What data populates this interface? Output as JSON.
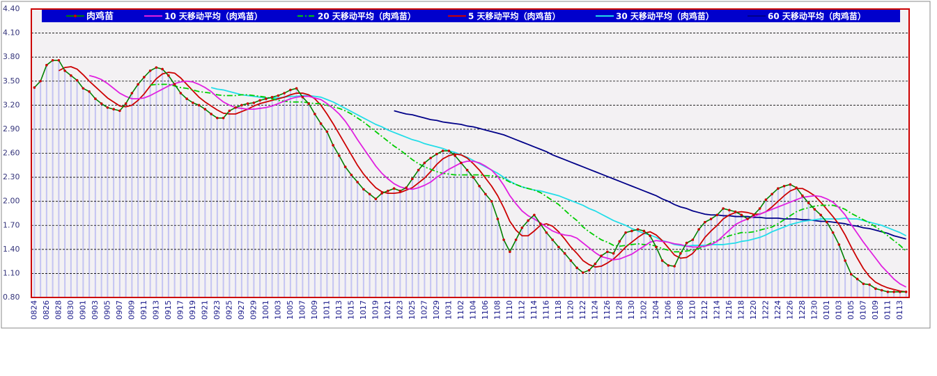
{
  "chart_data": {
    "type": "line",
    "categories": [
      "0824",
      null,
      "0826",
      null,
      "0828",
      null,
      "0830",
      null,
      "0901",
      null,
      "0903",
      null,
      "0905",
      null,
      "0907",
      null,
      "0909",
      null,
      "0911",
      null,
      "0913",
      null,
      "0915",
      null,
      "0917",
      null,
      "0919",
      null,
      "0921",
      null,
      "0923",
      null,
      "0925",
      null,
      "0927",
      null,
      "0929",
      null,
      "1001",
      null,
      "1003",
      null,
      "1005",
      null,
      "1007",
      null,
      "1009",
      null,
      "1011",
      null,
      "1013",
      null,
      "1015",
      null,
      "1017",
      null,
      "1019",
      null,
      "1021",
      null,
      "1023",
      null,
      "1025",
      null,
      "1027",
      null,
      "1029",
      null,
      "1031",
      null,
      "1102",
      null,
      "1104",
      null,
      "1106",
      null,
      "1108",
      null,
      "1110",
      null,
      "1112",
      null,
      "1114",
      null,
      "1116",
      null,
      "1118",
      null,
      "1120",
      null,
      "1122",
      null,
      "1124",
      null,
      "1126",
      null,
      "1128",
      null,
      "1130",
      null,
      "1202",
      null,
      "1204",
      null,
      "1206",
      null,
      "1208",
      null,
      "1210",
      null,
      "1212",
      null,
      "1214",
      null,
      "1216",
      null,
      "1218",
      null,
      "1220",
      null,
      "1222",
      null,
      "1224",
      null,
      "1226",
      null,
      "1228",
      null,
      "1230",
      null,
      "0101",
      null,
      "0103",
      null,
      "0105",
      null,
      "0107",
      null,
      "0109",
      null,
      "0111",
      null,
      "0113",
      null
    ],
    "series": [
      {
        "name": "肉鸡苗",
        "color": "#008000",
        "marker_color": "#cc0000",
        "values": [
          3.42,
          3.5,
          3.7,
          3.76,
          3.76,
          3.63,
          3.57,
          3.51,
          3.41,
          3.37,
          3.28,
          3.22,
          3.17,
          3.15,
          3.13,
          3.22,
          3.35,
          3.46,
          3.55,
          3.63,
          3.67,
          3.65,
          3.57,
          3.46,
          3.35,
          3.28,
          3.23,
          3.2,
          3.15,
          3.09,
          3.04,
          3.04,
          3.13,
          3.17,
          3.2,
          3.22,
          3.23,
          3.26,
          3.28,
          3.3,
          3.32,
          3.35,
          3.39,
          3.41,
          3.3,
          3.22,
          3.09,
          2.97,
          2.87,
          2.7,
          2.57,
          2.43,
          2.33,
          2.24,
          2.15,
          2.09,
          2.03,
          2.1,
          2.13,
          2.16,
          2.13,
          2.17,
          2.28,
          2.39,
          2.48,
          2.54,
          2.59,
          2.63,
          2.63,
          2.57,
          2.48,
          2.39,
          2.3,
          2.19,
          2.09,
          2.0,
          1.78,
          1.52,
          1.37,
          1.52,
          1.67,
          1.76,
          1.83,
          1.72,
          1.61,
          1.52,
          1.43,
          1.35,
          1.26,
          1.17,
          1.11,
          1.14,
          1.22,
          1.32,
          1.37,
          1.35,
          1.5,
          1.61,
          1.63,
          1.65,
          1.63,
          1.57,
          1.43,
          1.26,
          1.2,
          1.19,
          1.35,
          1.48,
          1.52,
          1.65,
          1.74,
          1.78,
          1.83,
          1.91,
          1.89,
          1.87,
          1.83,
          1.78,
          1.83,
          1.91,
          2.02,
          2.09,
          2.16,
          2.19,
          2.21,
          2.17,
          2.07,
          1.98,
          1.9,
          1.83,
          1.74,
          1.61,
          1.46,
          1.26,
          1.09,
          1.03,
          0.97,
          0.96,
          0.91,
          0.89,
          0.87,
          0.87,
          0.87,
          0.87
        ]
      },
      {
        "name": "10 天移动平均（肉鸡苗）",
        "color": "#e020e0",
        "values": [
          null,
          null,
          null,
          null,
          null,
          null,
          null,
          null,
          null,
          3.57,
          3.55,
          3.52,
          3.47,
          3.41,
          3.35,
          3.31,
          3.28,
          3.28,
          3.29,
          3.32,
          3.36,
          3.4,
          3.44,
          3.47,
          3.49,
          3.5,
          3.49,
          3.46,
          3.42,
          3.37,
          3.3,
          3.24,
          3.2,
          3.17,
          3.16,
          3.15,
          3.15,
          3.16,
          3.17,
          3.19,
          3.22,
          3.25,
          3.28,
          3.3,
          3.31,
          3.31,
          3.29,
          3.27,
          3.22,
          3.16,
          3.09,
          3.0,
          2.89,
          2.77,
          2.66,
          2.55,
          2.44,
          2.35,
          2.28,
          2.22,
          2.18,
          2.16,
          2.15,
          2.17,
          2.2,
          2.24,
          2.3,
          2.35,
          2.4,
          2.44,
          2.48,
          2.5,
          2.5,
          2.48,
          2.44,
          2.39,
          2.31,
          2.2,
          2.07,
          1.97,
          1.88,
          1.82,
          1.78,
          1.73,
          1.68,
          1.63,
          1.6,
          1.58,
          1.57,
          1.54,
          1.48,
          1.42,
          1.36,
          1.31,
          1.29,
          1.27,
          1.28,
          1.31,
          1.34,
          1.39,
          1.44,
          1.49,
          1.51,
          1.5,
          1.49,
          1.47,
          1.46,
          1.44,
          1.43,
          1.43,
          1.44,
          1.46,
          1.5,
          1.57,
          1.64,
          1.71,
          1.75,
          1.78,
          1.81,
          1.84,
          1.87,
          1.9,
          1.93,
          1.96,
          1.99,
          2.02,
          2.05,
          2.06,
          2.07,
          2.06,
          2.03,
          1.99,
          1.92,
          1.83,
          1.71,
          1.6,
          1.49,
          1.39,
          1.29,
          1.19,
          1.11,
          1.03,
          0.97,
          0.93
        ]
      },
      {
        "name": "20 天移动平均（肉鸡苗）",
        "color": "#00cc00",
        "dash": "dashdot",
        "values": [
          null,
          null,
          null,
          null,
          null,
          null,
          null,
          null,
          null,
          null,
          null,
          null,
          null,
          null,
          null,
          null,
          null,
          null,
          null,
          3.45,
          3.46,
          3.46,
          3.46,
          3.44,
          3.42,
          3.41,
          3.39,
          3.37,
          3.36,
          3.35,
          3.33,
          3.32,
          3.32,
          3.32,
          3.33,
          3.33,
          3.32,
          3.31,
          3.3,
          3.28,
          3.26,
          3.25,
          3.24,
          3.24,
          3.24,
          3.23,
          3.22,
          3.22,
          3.2,
          3.18,
          3.16,
          3.13,
          3.09,
          3.04,
          2.99,
          2.93,
          2.87,
          2.81,
          2.75,
          2.69,
          2.64,
          2.58,
          2.52,
          2.47,
          2.43,
          2.4,
          2.37,
          2.35,
          2.34,
          2.33,
          2.33,
          2.33,
          2.33,
          2.33,
          2.32,
          2.32,
          2.31,
          2.28,
          2.24,
          2.21,
          2.18,
          2.16,
          2.14,
          2.11,
          2.06,
          2.01,
          1.96,
          1.89,
          1.82,
          1.76,
          1.68,
          1.62,
          1.57,
          1.52,
          1.49,
          1.45,
          1.44,
          1.45,
          1.46,
          1.47,
          1.46,
          1.46,
          1.44,
          1.41,
          1.39,
          1.37,
          1.37,
          1.38,
          1.39,
          1.41,
          1.44,
          1.48,
          1.51,
          1.54,
          1.57,
          1.59,
          1.61,
          1.61,
          1.62,
          1.64,
          1.66,
          1.68,
          1.72,
          1.77,
          1.82,
          1.87,
          1.9,
          1.92,
          1.94,
          1.95,
          1.95,
          1.95,
          1.93,
          1.9,
          1.85,
          1.81,
          1.77,
          1.73,
          1.68,
          1.63,
          1.57,
          1.51,
          1.45,
          1.38
        ]
      },
      {
        "name": "5 天移动平均（肉鸡苗）",
        "color": "#cc0000",
        "values": [
          null,
          null,
          null,
          null,
          3.63,
          3.67,
          3.68,
          3.65,
          3.58,
          3.5,
          3.43,
          3.36,
          3.29,
          3.24,
          3.19,
          3.18,
          3.2,
          3.26,
          3.34,
          3.44,
          3.53,
          3.59,
          3.61,
          3.6,
          3.54,
          3.46,
          3.38,
          3.3,
          3.24,
          3.19,
          3.14,
          3.1,
          3.09,
          3.09,
          3.12,
          3.15,
          3.19,
          3.22,
          3.24,
          3.26,
          3.28,
          3.3,
          3.33,
          3.35,
          3.35,
          3.33,
          3.28,
          3.2,
          3.09,
          2.97,
          2.84,
          2.71,
          2.58,
          2.45,
          2.34,
          2.25,
          2.17,
          2.12,
          2.1,
          2.1,
          2.11,
          2.14,
          2.17,
          2.23,
          2.29,
          2.37,
          2.46,
          2.53,
          2.57,
          2.59,
          2.58,
          2.54,
          2.47,
          2.39,
          2.29,
          2.19,
          2.07,
          1.92,
          1.75,
          1.64,
          1.57,
          1.57,
          1.63,
          1.7,
          1.72,
          1.69,
          1.62,
          1.53,
          1.43,
          1.35,
          1.26,
          1.21,
          1.18,
          1.19,
          1.23,
          1.28,
          1.35,
          1.43,
          1.49,
          1.55,
          1.6,
          1.62,
          1.58,
          1.51,
          1.42,
          1.33,
          1.29,
          1.3,
          1.35,
          1.44,
          1.55,
          1.63,
          1.7,
          1.78,
          1.83,
          1.86,
          1.87,
          1.86,
          1.84,
          1.84,
          1.87,
          1.93,
          2.0,
          2.07,
          2.13,
          2.16,
          2.16,
          2.12,
          2.07,
          1.99,
          1.9,
          1.81,
          1.71,
          1.58,
          1.43,
          1.29,
          1.16,
          1.06,
          0.99,
          0.95,
          0.92,
          0.9,
          0.88,
          0.87
        ]
      },
      {
        "name": "30 天移动平均（肉鸡苗）",
        "color": "#22dde8",
        "values": [
          null,
          null,
          null,
          null,
          null,
          null,
          null,
          null,
          null,
          null,
          null,
          null,
          null,
          null,
          null,
          null,
          null,
          null,
          null,
          null,
          null,
          null,
          null,
          null,
          null,
          null,
          null,
          null,
          null,
          3.42,
          3.4,
          3.39,
          3.37,
          3.35,
          3.33,
          3.32,
          3.31,
          3.3,
          3.29,
          3.29,
          3.29,
          3.3,
          3.31,
          3.31,
          3.32,
          3.32,
          3.31,
          3.3,
          3.27,
          3.24,
          3.2,
          3.16,
          3.12,
          3.08,
          3.04,
          3.0,
          2.96,
          2.93,
          2.89,
          2.86,
          2.83,
          2.8,
          2.77,
          2.75,
          2.72,
          2.7,
          2.68,
          2.66,
          2.63,
          2.61,
          2.58,
          2.55,
          2.51,
          2.47,
          2.43,
          2.39,
          2.35,
          2.3,
          2.25,
          2.21,
          2.18,
          2.16,
          2.14,
          2.13,
          2.11,
          2.09,
          2.07,
          2.04,
          2.01,
          1.98,
          1.95,
          1.91,
          1.88,
          1.84,
          1.8,
          1.76,
          1.73,
          1.7,
          1.66,
          1.63,
          1.6,
          1.58,
          1.55,
          1.51,
          1.49,
          1.46,
          1.45,
          1.44,
          1.45,
          1.45,
          1.45,
          1.46,
          1.46,
          1.46,
          1.47,
          1.48,
          1.5,
          1.51,
          1.53,
          1.55,
          1.58,
          1.62,
          1.65,
          1.68,
          1.71,
          1.73,
          1.75,
          1.76,
          1.77,
          1.78,
          1.78,
          1.78,
          1.78,
          1.79,
          1.78,
          1.78,
          1.76,
          1.74,
          1.72,
          1.7,
          1.67,
          1.64,
          1.61,
          1.57
        ]
      },
      {
        "name": "60 天移动平均（肉鸡苗）",
        "color": "#000088",
        "values": [
          null,
          null,
          null,
          null,
          null,
          null,
          null,
          null,
          null,
          null,
          null,
          null,
          null,
          null,
          null,
          null,
          null,
          null,
          null,
          null,
          null,
          null,
          null,
          null,
          null,
          null,
          null,
          null,
          null,
          null,
          null,
          null,
          null,
          null,
          null,
          null,
          null,
          null,
          null,
          null,
          null,
          null,
          null,
          null,
          null,
          null,
          null,
          null,
          null,
          null,
          null,
          null,
          null,
          null,
          null,
          null,
          null,
          null,
          null,
          3.13,
          3.11,
          3.09,
          3.08,
          3.06,
          3.04,
          3.02,
          3.01,
          2.99,
          2.98,
          2.97,
          2.96,
          2.94,
          2.93,
          2.91,
          2.89,
          2.87,
          2.85,
          2.83,
          2.8,
          2.77,
          2.74,
          2.71,
          2.68,
          2.65,
          2.62,
          2.58,
          2.55,
          2.52,
          2.49,
          2.46,
          2.43,
          2.4,
          2.37,
          2.34,
          2.31,
          2.28,
          2.25,
          2.22,
          2.19,
          2.16,
          2.13,
          2.1,
          2.07,
          2.03,
          2.0,
          1.96,
          1.93,
          1.91,
          1.88,
          1.86,
          1.84,
          1.83,
          1.83,
          1.82,
          1.82,
          1.81,
          1.81,
          1.81,
          1.8,
          1.8,
          1.79,
          1.79,
          1.79,
          1.78,
          1.78,
          1.78,
          1.77,
          1.77,
          1.76,
          1.75,
          1.75,
          1.74,
          1.73,
          1.72,
          1.7,
          1.69,
          1.67,
          1.66,
          1.64,
          1.62,
          1.6,
          1.57,
          1.55,
          1.53
        ]
      }
    ],
    "bar_color": "#c4c4f2",
    "ylim": [
      0.8,
      4.4
    ],
    "yticks": [
      {
        "value": 4.4,
        "label": "4.40"
      },
      {
        "value": 4.1,
        "label": "4.10"
      },
      {
        "value": 3.8,
        "label": "3.80"
      },
      {
        "value": 3.5,
        "label": "3.50"
      },
      {
        "value": 3.2,
        "label": "3.20"
      },
      {
        "value": 2.9,
        "label": "2.90"
      },
      {
        "value": 2.6,
        "label": "2.60"
      },
      {
        "value": 2.3,
        "label": "2.30"
      },
      {
        "value": 2.0,
        "label": "2.00"
      },
      {
        "value": 1.7,
        "label": "1.70"
      },
      {
        "value": 1.4,
        "label": "1.40"
      },
      {
        "value": 1.1,
        "label": "1.10"
      },
      {
        "value": 0.8,
        "label": "0.80"
      }
    ],
    "grid": true,
    "legend": "top"
  }
}
